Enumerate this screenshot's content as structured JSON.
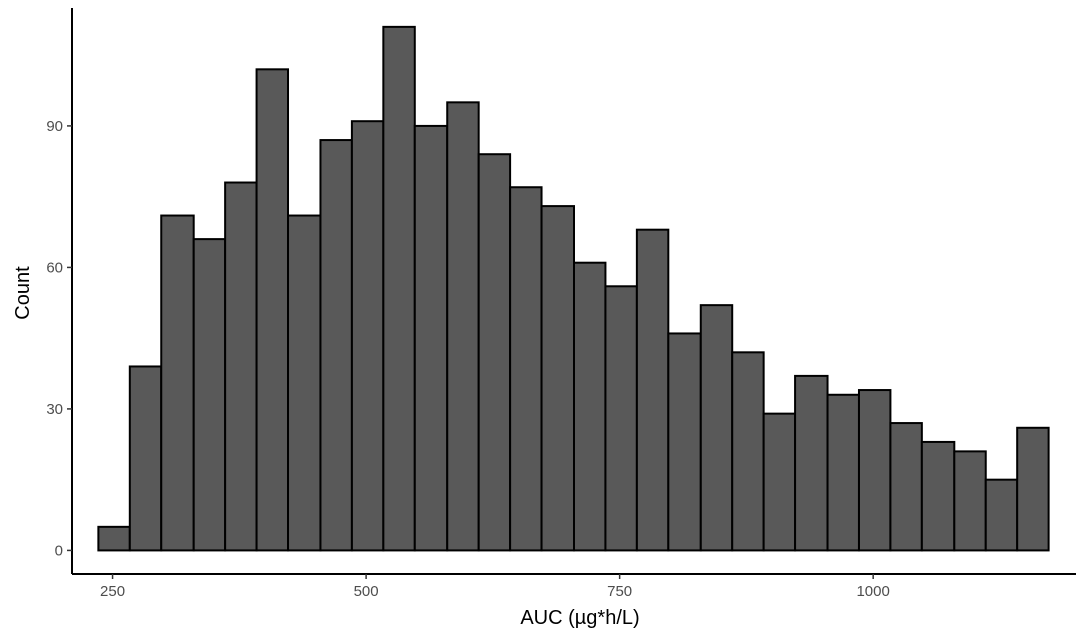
{
  "chart_data": {
    "type": "bar",
    "subtype": "histogram",
    "title": "",
    "xlabel": "AUC (µg*h/L)",
    "ylabel": "Count",
    "xlim": [
      210,
      1200
    ],
    "ylim": [
      -5,
      115
    ],
    "x_ticks": [
      250,
      500,
      750,
      1000
    ],
    "y_ticks": [
      0,
      30,
      60,
      90
    ],
    "bin_width": 31.2,
    "bins": [
      {
        "x0": 236,
        "x1": 267,
        "count": 5
      },
      {
        "x0": 267,
        "x1": 298,
        "count": 39
      },
      {
        "x0": 298,
        "x1": 330,
        "count": 71
      },
      {
        "x0": 330,
        "x1": 361,
        "count": 66
      },
      {
        "x0": 361,
        "x1": 392,
        "count": 78
      },
      {
        "x0": 392,
        "x1": 423,
        "count": 102
      },
      {
        "x0": 423,
        "x1": 455,
        "count": 71
      },
      {
        "x0": 455,
        "x1": 486,
        "count": 87
      },
      {
        "x0": 486,
        "x1": 517,
        "count": 91
      },
      {
        "x0": 517,
        "x1": 548,
        "count": 111
      },
      {
        "x0": 548,
        "x1": 580,
        "count": 90
      },
      {
        "x0": 580,
        "x1": 611,
        "count": 95
      },
      {
        "x0": 611,
        "x1": 642,
        "count": 84
      },
      {
        "x0": 642,
        "x1": 673,
        "count": 77
      },
      {
        "x0": 673,
        "x1": 705,
        "count": 73
      },
      {
        "x0": 705,
        "x1": 736,
        "count": 61
      },
      {
        "x0": 736,
        "x1": 767,
        "count": 56
      },
      {
        "x0": 767,
        "x1": 798,
        "count": 68
      },
      {
        "x0": 798,
        "x1": 830,
        "count": 46
      },
      {
        "x0": 830,
        "x1": 861,
        "count": 52
      },
      {
        "x0": 861,
        "x1": 892,
        "count": 42
      },
      {
        "x0": 892,
        "x1": 923,
        "count": 29
      },
      {
        "x0": 923,
        "x1": 955,
        "count": 37
      },
      {
        "x0": 955,
        "x1": 986,
        "count": 33
      },
      {
        "x0": 986,
        "x1": 1017,
        "count": 34
      },
      {
        "x0": 1017,
        "x1": 1048,
        "count": 27
      },
      {
        "x0": 1048,
        "x1": 1080,
        "count": 23
      },
      {
        "x0": 1080,
        "x1": 1111,
        "count": 21
      },
      {
        "x0": 1111,
        "x1": 1142,
        "count": 15
      },
      {
        "x0": 1142,
        "x1": 1173,
        "count": 26
      }
    ],
    "grid": false,
    "legend": "none",
    "colors": {
      "bar_fill": "#595959",
      "bar_outline": "#000000"
    }
  }
}
